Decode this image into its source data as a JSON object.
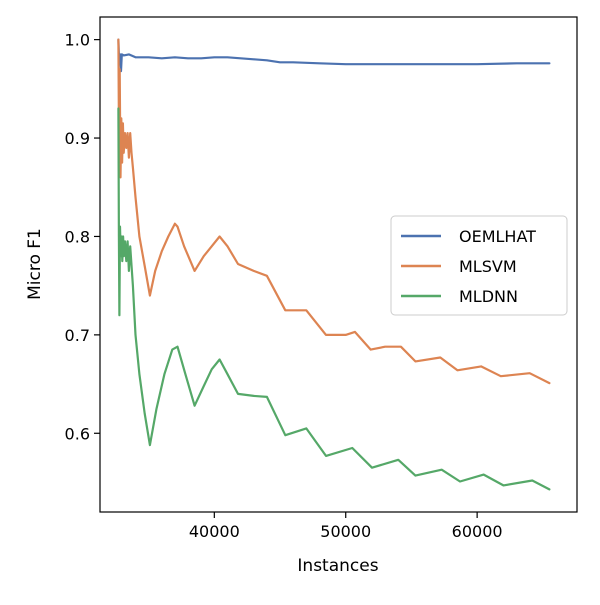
{
  "chart_data": {
    "type": "line",
    "title": "",
    "xlabel": "Instances",
    "ylabel": "Micro F1",
    "xlim": [
      31300,
      67600
    ],
    "ylim": [
      0.52,
      1.023
    ],
    "xticks": [
      40000,
      50000,
      60000
    ],
    "yticks": [
      0.6,
      0.7,
      0.8,
      0.9,
      1.0
    ],
    "xtick_labels": [
      "40000",
      "50000",
      "60000"
    ],
    "ytick_labels": [
      "0.6",
      "0.7",
      "0.8",
      "0.9",
      "1.0"
    ],
    "grid": false,
    "legend_position": "center-right",
    "series": [
      {
        "name": "OEMLHAT",
        "color": "#4c72b0",
        "points": [
          [
            32700,
            1.0
          ],
          [
            32760,
            0.975
          ],
          [
            32820,
            0.985
          ],
          [
            32900,
            0.968
          ],
          [
            32960,
            0.985
          ],
          [
            33100,
            0.984
          ],
          [
            33500,
            0.985
          ],
          [
            34000,
            0.982
          ],
          [
            35000,
            0.982
          ],
          [
            36000,
            0.981
          ],
          [
            37000,
            0.982
          ],
          [
            38000,
            0.981
          ],
          [
            39000,
            0.981
          ],
          [
            40000,
            0.982
          ],
          [
            41000,
            0.982
          ],
          [
            42000,
            0.981
          ],
          [
            43000,
            0.98
          ],
          [
            44000,
            0.979
          ],
          [
            45000,
            0.977
          ],
          [
            46000,
            0.977
          ],
          [
            48000,
            0.976
          ],
          [
            50000,
            0.975
          ],
          [
            52000,
            0.975
          ],
          [
            55000,
            0.975
          ],
          [
            58000,
            0.975
          ],
          [
            60000,
            0.975
          ],
          [
            63000,
            0.976
          ],
          [
            65500,
            0.976
          ]
        ]
      },
      {
        "name": "MLSVM",
        "color": "#dd8452",
        "points": [
          [
            32700,
            1.0
          ],
          [
            32750,
            0.88
          ],
          [
            32800,
            0.97
          ],
          [
            32860,
            0.86
          ],
          [
            32920,
            0.92
          ],
          [
            32980,
            0.875
          ],
          [
            33040,
            0.915
          ],
          [
            33100,
            0.885
          ],
          [
            33200,
            0.905
          ],
          [
            33300,
            0.89
          ],
          [
            33400,
            0.905
          ],
          [
            33500,
            0.88
          ],
          [
            33600,
            0.905
          ],
          [
            33700,
            0.885
          ],
          [
            33800,
            0.87
          ],
          [
            34000,
            0.84
          ],
          [
            34300,
            0.8
          ],
          [
            34700,
            0.77
          ],
          [
            35100,
            0.74
          ],
          [
            35500,
            0.765
          ],
          [
            36000,
            0.785
          ],
          [
            36500,
            0.8
          ],
          [
            37000,
            0.813
          ],
          [
            37200,
            0.81
          ],
          [
            37700,
            0.79
          ],
          [
            38500,
            0.765
          ],
          [
            39200,
            0.78
          ],
          [
            39800,
            0.79
          ],
          [
            40400,
            0.8
          ],
          [
            41000,
            0.79
          ],
          [
            41800,
            0.772
          ],
          [
            43000,
            0.765
          ],
          [
            44000,
            0.76
          ],
          [
            45400,
            0.725
          ],
          [
            47000,
            0.725
          ],
          [
            48500,
            0.7
          ],
          [
            50000,
            0.7
          ],
          [
            50700,
            0.703
          ],
          [
            51900,
            0.685
          ],
          [
            53000,
            0.688
          ],
          [
            54200,
            0.688
          ],
          [
            55300,
            0.673
          ],
          [
            57200,
            0.677
          ],
          [
            58500,
            0.664
          ],
          [
            60300,
            0.668
          ],
          [
            61800,
            0.658
          ],
          [
            64000,
            0.661
          ],
          [
            65500,
            0.651
          ]
        ]
      },
      {
        "name": "MLDNN",
        "color": "#55a868",
        "points": [
          [
            32700,
            0.93
          ],
          [
            32740,
            0.8
          ],
          [
            32780,
            0.72
          ],
          [
            32820,
            0.81
          ],
          [
            32880,
            0.78
          ],
          [
            32940,
            0.8
          ],
          [
            33000,
            0.775
          ],
          [
            33060,
            0.8
          ],
          [
            33120,
            0.78
          ],
          [
            33200,
            0.795
          ],
          [
            33300,
            0.775
          ],
          [
            33400,
            0.795
          ],
          [
            33500,
            0.765
          ],
          [
            33600,
            0.79
          ],
          [
            33800,
            0.75
          ],
          [
            34000,
            0.7
          ],
          [
            34300,
            0.66
          ],
          [
            34700,
            0.62
          ],
          [
            35100,
            0.588
          ],
          [
            35600,
            0.625
          ],
          [
            36200,
            0.66
          ],
          [
            36800,
            0.685
          ],
          [
            37200,
            0.688
          ],
          [
            37800,
            0.66
          ],
          [
            38500,
            0.628
          ],
          [
            39200,
            0.648
          ],
          [
            39800,
            0.665
          ],
          [
            40400,
            0.675
          ],
          [
            41000,
            0.66
          ],
          [
            41800,
            0.64
          ],
          [
            43000,
            0.638
          ],
          [
            44000,
            0.637
          ],
          [
            45400,
            0.598
          ],
          [
            47000,
            0.605
          ],
          [
            48500,
            0.577
          ],
          [
            50500,
            0.585
          ],
          [
            52000,
            0.565
          ],
          [
            54000,
            0.573
          ],
          [
            55300,
            0.557
          ],
          [
            57300,
            0.563
          ],
          [
            58700,
            0.551
          ],
          [
            60500,
            0.558
          ],
          [
            62000,
            0.547
          ],
          [
            64200,
            0.552
          ],
          [
            65500,
            0.543
          ]
        ]
      }
    ]
  }
}
